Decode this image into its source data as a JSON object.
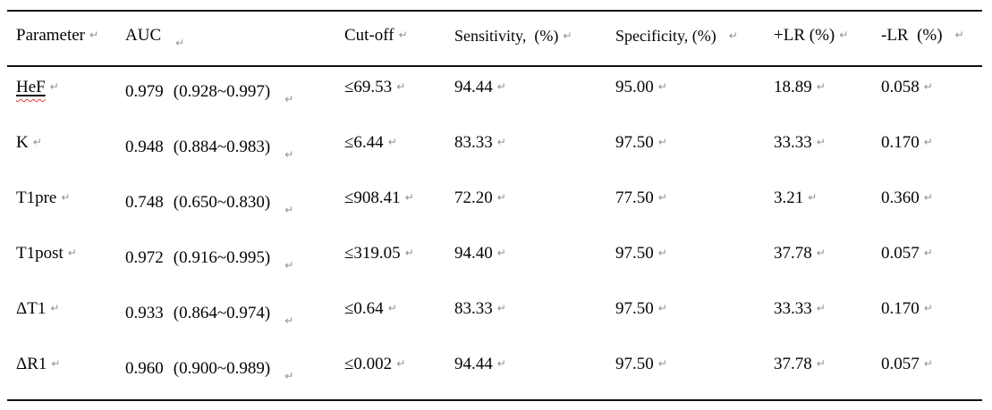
{
  "document": {
    "background": "#ffffff",
    "text_color": "#050505",
    "rule_color": "#111111",
    "formatting_mark": "↵",
    "formatting_mark_color": "#8f8f8f",
    "spellcheck_underline_color": "#e03a2f"
  },
  "table": {
    "headers": {
      "parameter": "Parameter",
      "auc": "AUC",
      "cutoff": "Cut-off",
      "sensitivity": "Sensitivity,  (%)",
      "specificity": "Specificity, (%)",
      "positive_lr": "+LR (%)",
      "negative_lr": "-LR  (%)"
    },
    "rows": [
      {
        "parameter": "HeF",
        "auc": "0.979",
        "auc_ci": "(0.928~0.997)",
        "cutoff": "≤69.53",
        "sensitivity": "94.44",
        "specificity": "95.00",
        "positive_lr": "18.89",
        "negative_lr": "0.058",
        "misspelled": true
      },
      {
        "parameter": "K",
        "auc": "0.948",
        "auc_ci": "(0.884~0.983)",
        "cutoff": "≤6.44",
        "sensitivity": "83.33",
        "specificity": "97.50",
        "positive_lr": "33.33",
        "negative_lr": "0.170",
        "misspelled": false
      },
      {
        "parameter": "T1pre",
        "auc": "0.748",
        "auc_ci": "(0.650~0.830)",
        "cutoff": "≤908.41",
        "sensitivity": "72.20",
        "specificity": "77.50",
        "positive_lr": "3.21",
        "negative_lr": "0.360",
        "misspelled": false
      },
      {
        "parameter": "T1post",
        "auc": "0.972",
        "auc_ci": "(0.916~0.995)",
        "cutoff": "≤319.05",
        "sensitivity": "94.40",
        "specificity": "97.50",
        "positive_lr": "37.78",
        "negative_lr": "0.057",
        "misspelled": false
      },
      {
        "parameter": "ΔT1",
        "auc": "0.933",
        "auc_ci": "(0.864~0.974)",
        "cutoff": "≤0.64",
        "sensitivity": "83.33",
        "specificity": "97.50",
        "positive_lr": "33.33",
        "negative_lr": "0.170",
        "misspelled": false
      },
      {
        "parameter": "ΔR1",
        "auc": "0.960",
        "auc_ci": "(0.900~0.989)",
        "cutoff": "≤0.002",
        "sensitivity": "94.44",
        "specificity": "97.50",
        "positive_lr": "37.78",
        "negative_lr": "0.057",
        "misspelled": false
      }
    ]
  }
}
